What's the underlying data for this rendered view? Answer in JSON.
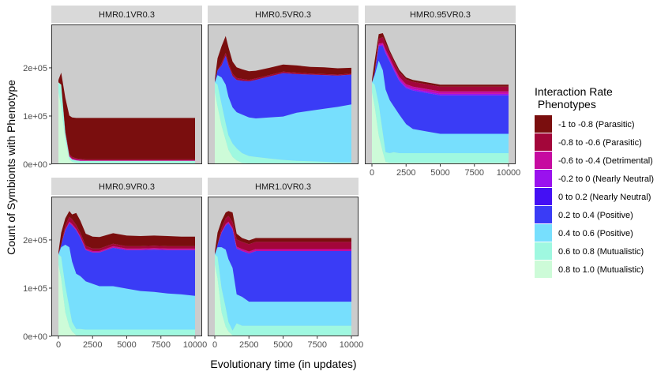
{
  "chart_data": {
    "type": "area",
    "stacked": true,
    "xlabel": "Evolutionary time (in updates)",
    "ylabel": "Count of Symbionts with Phenotype",
    "xlim": [
      0,
      10000
    ],
    "ylim": [
      0,
      290000
    ],
    "x_ticks": [
      0,
      2500,
      5000,
      7500,
      10000
    ],
    "x_tick_labels": [
      "0",
      "2500",
      "5000",
      "7500",
      "10000"
    ],
    "y_ticks": [
      0,
      100000,
      200000
    ],
    "y_tick_labels": [
      "0e+00",
      "1e+05",
      "2e+05"
    ],
    "legend": {
      "title_line1": "Interaction Rate",
      "title_line2": " Phenotypes",
      "position": "right"
    },
    "series": [
      {
        "name": "-1 to -0.8 (Parasitic)",
        "color": "#7a0e0e"
      },
      {
        "name": "-0.8 to -0.6 (Parasitic)",
        "color": "#a3063a"
      },
      {
        "name": "-0.6 to -0.4 (Detrimental)",
        "color": "#c60ba0"
      },
      {
        "name": "-0.2 to 0 (Nearly Neutral)",
        "color": "#9a12ee"
      },
      {
        "name": "0 to 0.2 (Nearly Neutral)",
        "color": "#4410f4"
      },
      {
        "name": "0.2 to 0.4 (Positive)",
        "color": "#3a3cf6"
      },
      {
        "name": "0.4 to 0.6 (Positive)",
        "color": "#77dffd"
      },
      {
        "name": "0.6 to 0.8 (Mutualistic)",
        "color": "#9ff8e0"
      },
      {
        "name": "0.8 to 1.0 (Mutualistic)",
        "color": "#cdfbd8"
      }
    ],
    "x": [
      0,
      200,
      500,
      800,
      1000,
      1300,
      1600,
      2000,
      2500,
      3000,
      4000,
      5000,
      6000,
      7000,
      8000,
      9000,
      10000
    ],
    "panels": [
      {
        "title": "HMR0.1VR0.3",
        "layers": [
          [
            5000,
            25000,
            70000,
            80000,
            82000,
            84000,
            85000,
            86000,
            86000,
            86000,
            86000,
            86000,
            86000,
            86000,
            86000,
            86000,
            86000
          ],
          [
            0,
            0,
            2000,
            3000,
            3000,
            2000,
            2000,
            2000,
            2000,
            2000,
            2000,
            2000,
            2000,
            2000,
            2000,
            2000,
            2000
          ],
          [
            0,
            0,
            1000,
            2000,
            2000,
            2000,
            2000,
            1000,
            1000,
            1000,
            1000,
            1000,
            1000,
            1000,
            1000,
            1000,
            1000
          ],
          [
            0,
            0,
            0,
            0,
            0,
            0,
            0,
            0,
            0,
            0,
            0,
            0,
            0,
            0,
            0,
            0,
            0
          ],
          [
            0,
            0,
            0,
            0,
            0,
            0,
            0,
            0,
            0,
            0,
            0,
            0,
            0,
            0,
            0,
            0,
            0
          ],
          [
            0,
            0,
            0,
            0,
            0,
            0,
            0,
            0,
            0,
            0,
            0,
            0,
            0,
            0,
            0,
            0,
            0
          ],
          [
            0,
            0,
            0,
            0,
            0,
            0,
            0,
            0,
            0,
            0,
            0,
            0,
            0,
            0,
            0,
            0,
            0
          ],
          [
            20000,
            45000,
            15000,
            6000,
            5000,
            5000,
            5000,
            5000,
            5000,
            5000,
            5000,
            5000,
            5000,
            5000,
            5000,
            5000,
            5000
          ],
          [
            150000,
            120000,
            50000,
            10000,
            5000,
            3000,
            2000,
            2000,
            2000,
            2000,
            2000,
            2000,
            2000,
            2000,
            2000,
            2000,
            2000
          ]
        ]
      },
      {
        "title": "HMR0.5VR0.3",
        "layers": [
          [
            5000,
            25000,
            35000,
            35000,
            33000,
            25000,
            22000,
            20000,
            18000,
            16000,
            15000,
            15000,
            15000,
            14000,
            14000,
            13000,
            12000
          ],
          [
            0,
            0,
            5000,
            6000,
            5000,
            5000,
            4000,
            4000,
            3000,
            3000,
            3000,
            3000,
            3000,
            2000,
            2000,
            2000,
            2000
          ],
          [
            0,
            0,
            0,
            0,
            0,
            0,
            0,
            0,
            0,
            0,
            0,
            0,
            0,
            0,
            0,
            0,
            0
          ],
          [
            0,
            0,
            0,
            0,
            0,
            0,
            0,
            0,
            0,
            0,
            0,
            0,
            0,
            0,
            0,
            0,
            0
          ],
          [
            0,
            0,
            0,
            0,
            0,
            0,
            0,
            0,
            0,
            0,
            0,
            0,
            0,
            0,
            0,
            0,
            0
          ],
          [
            0,
            10000,
            25000,
            60000,
            65000,
            65000,
            67000,
            70000,
            75000,
            80000,
            85000,
            90000,
            80000,
            75000,
            70000,
            65000,
            62000
          ],
          [
            0,
            20000,
            55000,
            80000,
            80000,
            75000,
            75000,
            80000,
            80000,
            80000,
            85000,
            90000,
            100000,
            105000,
            110000,
            115000,
            120000
          ],
          [
            20000,
            45000,
            45000,
            35000,
            30000,
            28000,
            25000,
            20000,
            15000,
            13000,
            10000,
            7000,
            5000,
            4000,
            3000,
            2000,
            2000
          ],
          [
            150000,
            120000,
            80000,
            50000,
            30000,
            15000,
            8000,
            3000,
            2000,
            2000,
            2000,
            2000,
            2000,
            2000,
            2000,
            2000,
            2000
          ]
        ]
      },
      {
        "title": "HMR0.95VR0.3",
        "layers": [
          [
            5000,
            25000,
            10000,
            8000,
            8000,
            5000,
            5000,
            5000,
            4000,
            4000,
            4000,
            4000,
            4000,
            4000,
            4000,
            4000,
            4000
          ],
          [
            0,
            0,
            10000,
            12000,
            12000,
            10000,
            10000,
            10000,
            10000,
            10000,
            10000,
            10000,
            10000,
            10000,
            10000,
            10000,
            10000
          ],
          [
            0,
            0,
            3000,
            4000,
            5000,
            5000,
            5000,
            5000,
            5000,
            5000,
            5000,
            5000,
            5000,
            5000,
            5000,
            5000,
            5000
          ],
          [
            0,
            0,
            2000,
            3000,
            3000,
            3000,
            3000,
            3000,
            3000,
            3000,
            3000,
            3000,
            3000,
            3000,
            3000,
            3000,
            3000
          ],
          [
            0,
            0,
            0,
            0,
            0,
            0,
            0,
            0,
            0,
            0,
            0,
            0,
            0,
            0,
            0,
            0,
            0
          ],
          [
            0,
            5000,
            30000,
            50000,
            75000,
            80000,
            75000,
            70000,
            75000,
            80000,
            80000,
            80000,
            80000,
            80000,
            80000,
            80000,
            80000
          ],
          [
            0,
            20000,
            90000,
            130000,
            130000,
            110000,
            95000,
            80000,
            60000,
            50000,
            45000,
            40000,
            40000,
            40000,
            40000,
            40000,
            40000
          ],
          [
            20000,
            45000,
            65000,
            40000,
            20000,
            20000,
            22000,
            20000,
            20000,
            20000,
            20000,
            20000,
            20000,
            20000,
            20000,
            20000,
            20000
          ],
          [
            150000,
            120000,
            60000,
            25000,
            5000,
            3000,
            3000,
            3000,
            3000,
            3000,
            3000,
            3000,
            3000,
            3000,
            3000,
            3000,
            3000
          ]
        ]
      },
      {
        "title": "HMR0.9VR0.3",
        "layers": [
          [
            5000,
            25000,
            15000,
            12000,
            10000,
            25000,
            25000,
            25000,
            25000,
            24000,
            22000,
            22000,
            21000,
            21000,
            21000,
            20000,
            20000
          ],
          [
            0,
            0,
            8000,
            10000,
            10000,
            8000,
            7000,
            6000,
            5000,
            5000,
            5000,
            5000,
            5000,
            5000,
            5000,
            5000,
            5000
          ],
          [
            0,
            0,
            2000,
            3000,
            3000,
            3000,
            3000,
            3000,
            3000,
            3000,
            3000,
            3000,
            3000,
            3000,
            3000,
            3000,
            3000
          ],
          [
            0,
            0,
            0,
            0,
            0,
            0,
            0,
            0,
            0,
            0,
            0,
            0,
            0,
            0,
            0,
            0,
            0
          ],
          [
            0,
            0,
            0,
            0,
            0,
            0,
            0,
            0,
            0,
            0,
            0,
            0,
            0,
            0,
            0,
            0,
            0
          ],
          [
            0,
            5000,
            30000,
            50000,
            75000,
            90000,
            80000,
            65000,
            65000,
            70000,
            80000,
            80000,
            85000,
            88000,
            90000,
            92000,
            95000
          ],
          [
            0,
            20000,
            85000,
            125000,
            125000,
            115000,
            110000,
            100000,
            95000,
            90000,
            90000,
            85000,
            80000,
            78000,
            75000,
            73000,
            70000
          ],
          [
            20000,
            45000,
            55000,
            40000,
            20000,
            13000,
            13000,
            12000,
            12000,
            12000,
            12000,
            12000,
            12000,
            12000,
            12000,
            12000,
            12000
          ],
          [
            150000,
            120000,
            50000,
            20000,
            10000,
            2000,
            2000,
            2000,
            2000,
            2000,
            2000,
            2000,
            2000,
            2000,
            2000,
            2000,
            2000
          ]
        ]
      },
      {
        "title": "HMR1.0VR0.3",
        "layers": [
          [
            5000,
            25000,
            15000,
            12000,
            10000,
            20000,
            12000,
            8000,
            8000,
            8000,
            8000,
            8000,
            8000,
            8000,
            8000,
            8000,
            8000
          ],
          [
            0,
            0,
            8000,
            12000,
            12000,
            12000,
            15000,
            15000,
            15000,
            15000,
            15000,
            15000,
            15000,
            15000,
            15000,
            15000,
            15000
          ],
          [
            0,
            0,
            2000,
            3000,
            3000,
            3000,
            4000,
            4000,
            4000,
            4000,
            4000,
            4000,
            4000,
            4000,
            4000,
            4000,
            4000
          ],
          [
            0,
            0,
            0,
            0,
            0,
            0,
            0,
            0,
            0,
            0,
            0,
            0,
            0,
            0,
            0,
            0,
            0
          ],
          [
            0,
            0,
            0,
            0,
            0,
            0,
            0,
            0,
            0,
            0,
            0,
            0,
            0,
            0,
            0,
            0,
            0
          ],
          [
            0,
            5000,
            30000,
            50000,
            75000,
            80000,
            95000,
            95000,
            100000,
            105000,
            105000,
            105000,
            105000,
            105000,
            105000,
            105000,
            105000
          ],
          [
            0,
            20000,
            85000,
            120000,
            130000,
            130000,
            60000,
            60000,
            50000,
            50000,
            50000,
            50000,
            50000,
            50000,
            50000,
            50000,
            50000
          ],
          [
            20000,
            45000,
            50000,
            40000,
            20000,
            10000,
            25000,
            20000,
            20000,
            20000,
            20000,
            20000,
            20000,
            20000,
            20000,
            20000,
            20000
          ],
          [
            150000,
            120000,
            50000,
            20000,
            10000,
            2000,
            2000,
            2000,
            2000,
            2000,
            2000,
            2000,
            2000,
            2000,
            2000,
            2000,
            2000
          ]
        ]
      }
    ]
  }
}
